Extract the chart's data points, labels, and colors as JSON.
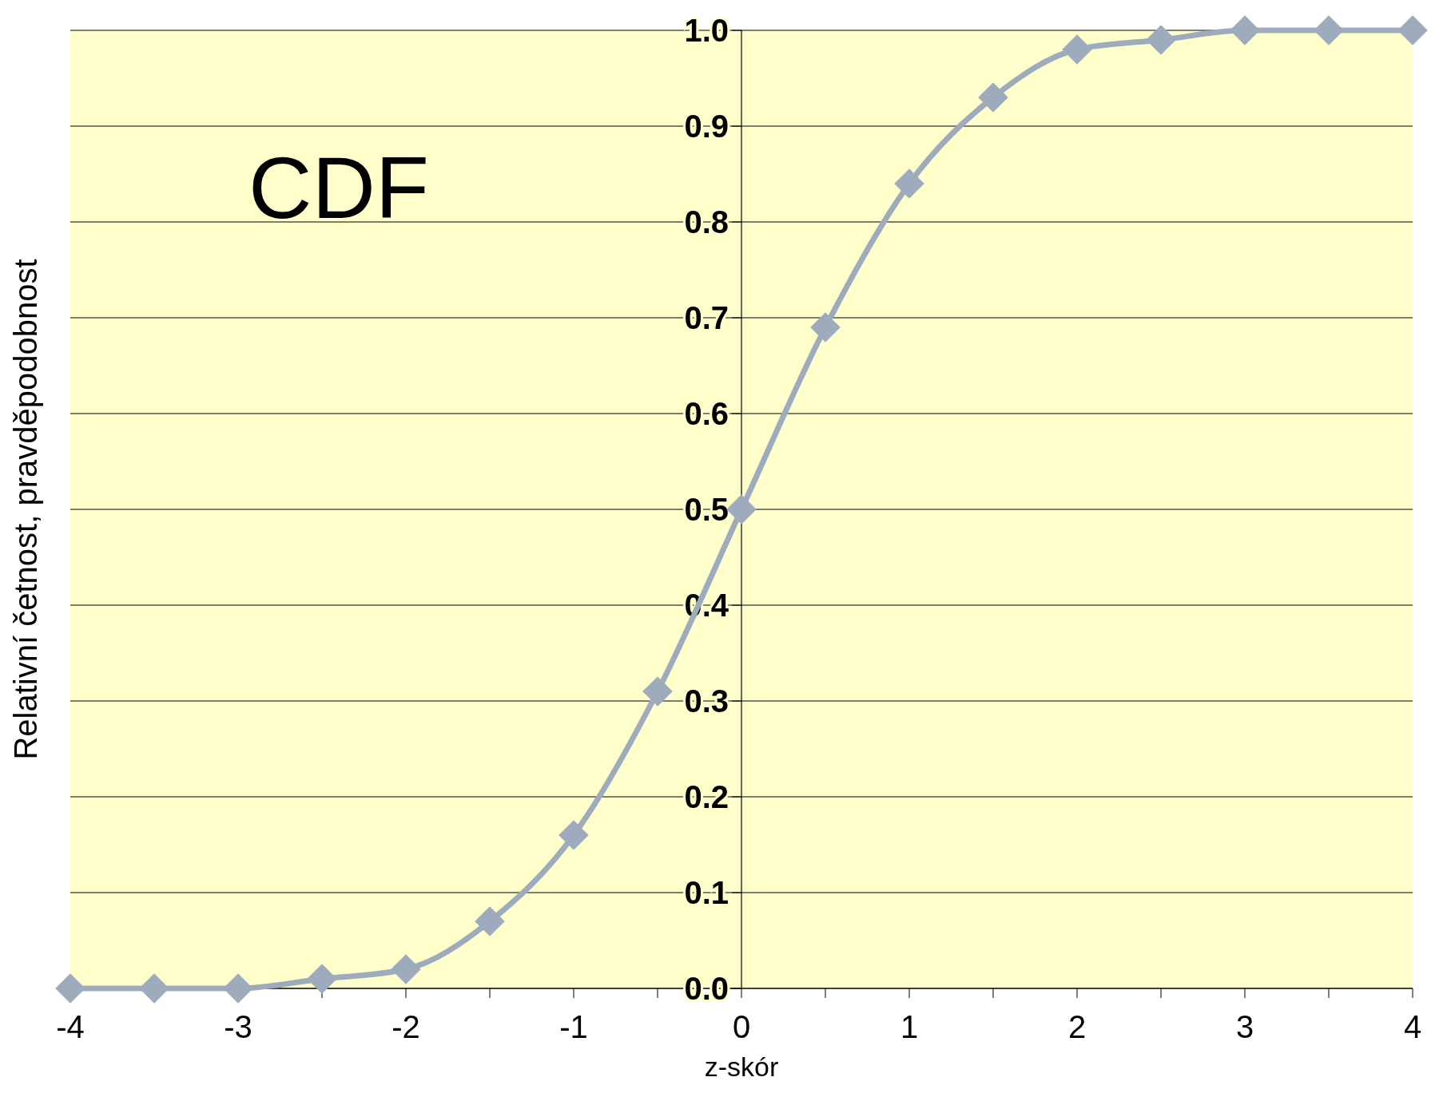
{
  "chart_data": {
    "type": "line",
    "title": "CDF",
    "xlabel": "z-skór",
    "ylabel": "Relativní četnost, pravděpodobnost",
    "x": [
      -4,
      -3.5,
      -3,
      -2.5,
      -2,
      -1.5,
      -1,
      -0.5,
      0,
      0.5,
      1,
      1.5,
      2,
      2.5,
      3,
      3.5,
      4
    ],
    "series": [
      {
        "color": "#9dabbd",
        "values": [
          0,
          0,
          0,
          0.01,
          0.02,
          0.07,
          0.16,
          0.31,
          0.5,
          0.69,
          0.84,
          0.93,
          0.98,
          0.99,
          1.0,
          1.0,
          1.0
        ]
      }
    ],
    "xlim": [
      -4,
      4
    ],
    "ylim": [
      0,
      1
    ],
    "xticks": [
      -4,
      {
        "value": -3.5,
        "label": null
      },
      -3,
      {
        "value": -2.5,
        "label": null
      },
      -2,
      {
        "value": -1.5,
        "label": null
      },
      -1,
      {
        "value": -0.5,
        "label": null
      },
      0,
      {
        "value": 0.5,
        "label": null
      },
      1,
      {
        "value": 1.5,
        "label": null
      },
      2,
      {
        "value": 2.5,
        "label": null
      },
      3,
      {
        "value": 3.5,
        "label": null
      },
      4
    ],
    "yticks": [
      {
        "value": 0,
        "label": "0.0"
      },
      0.1,
      0.2,
      0.3,
      0.4,
      0.5,
      0.6,
      0.7,
      0.8,
      0.9,
      {
        "value": 1,
        "label": "1.0"
      }
    ],
    "grid": "y",
    "marker": "diamond",
    "line_style": "solid"
  }
}
